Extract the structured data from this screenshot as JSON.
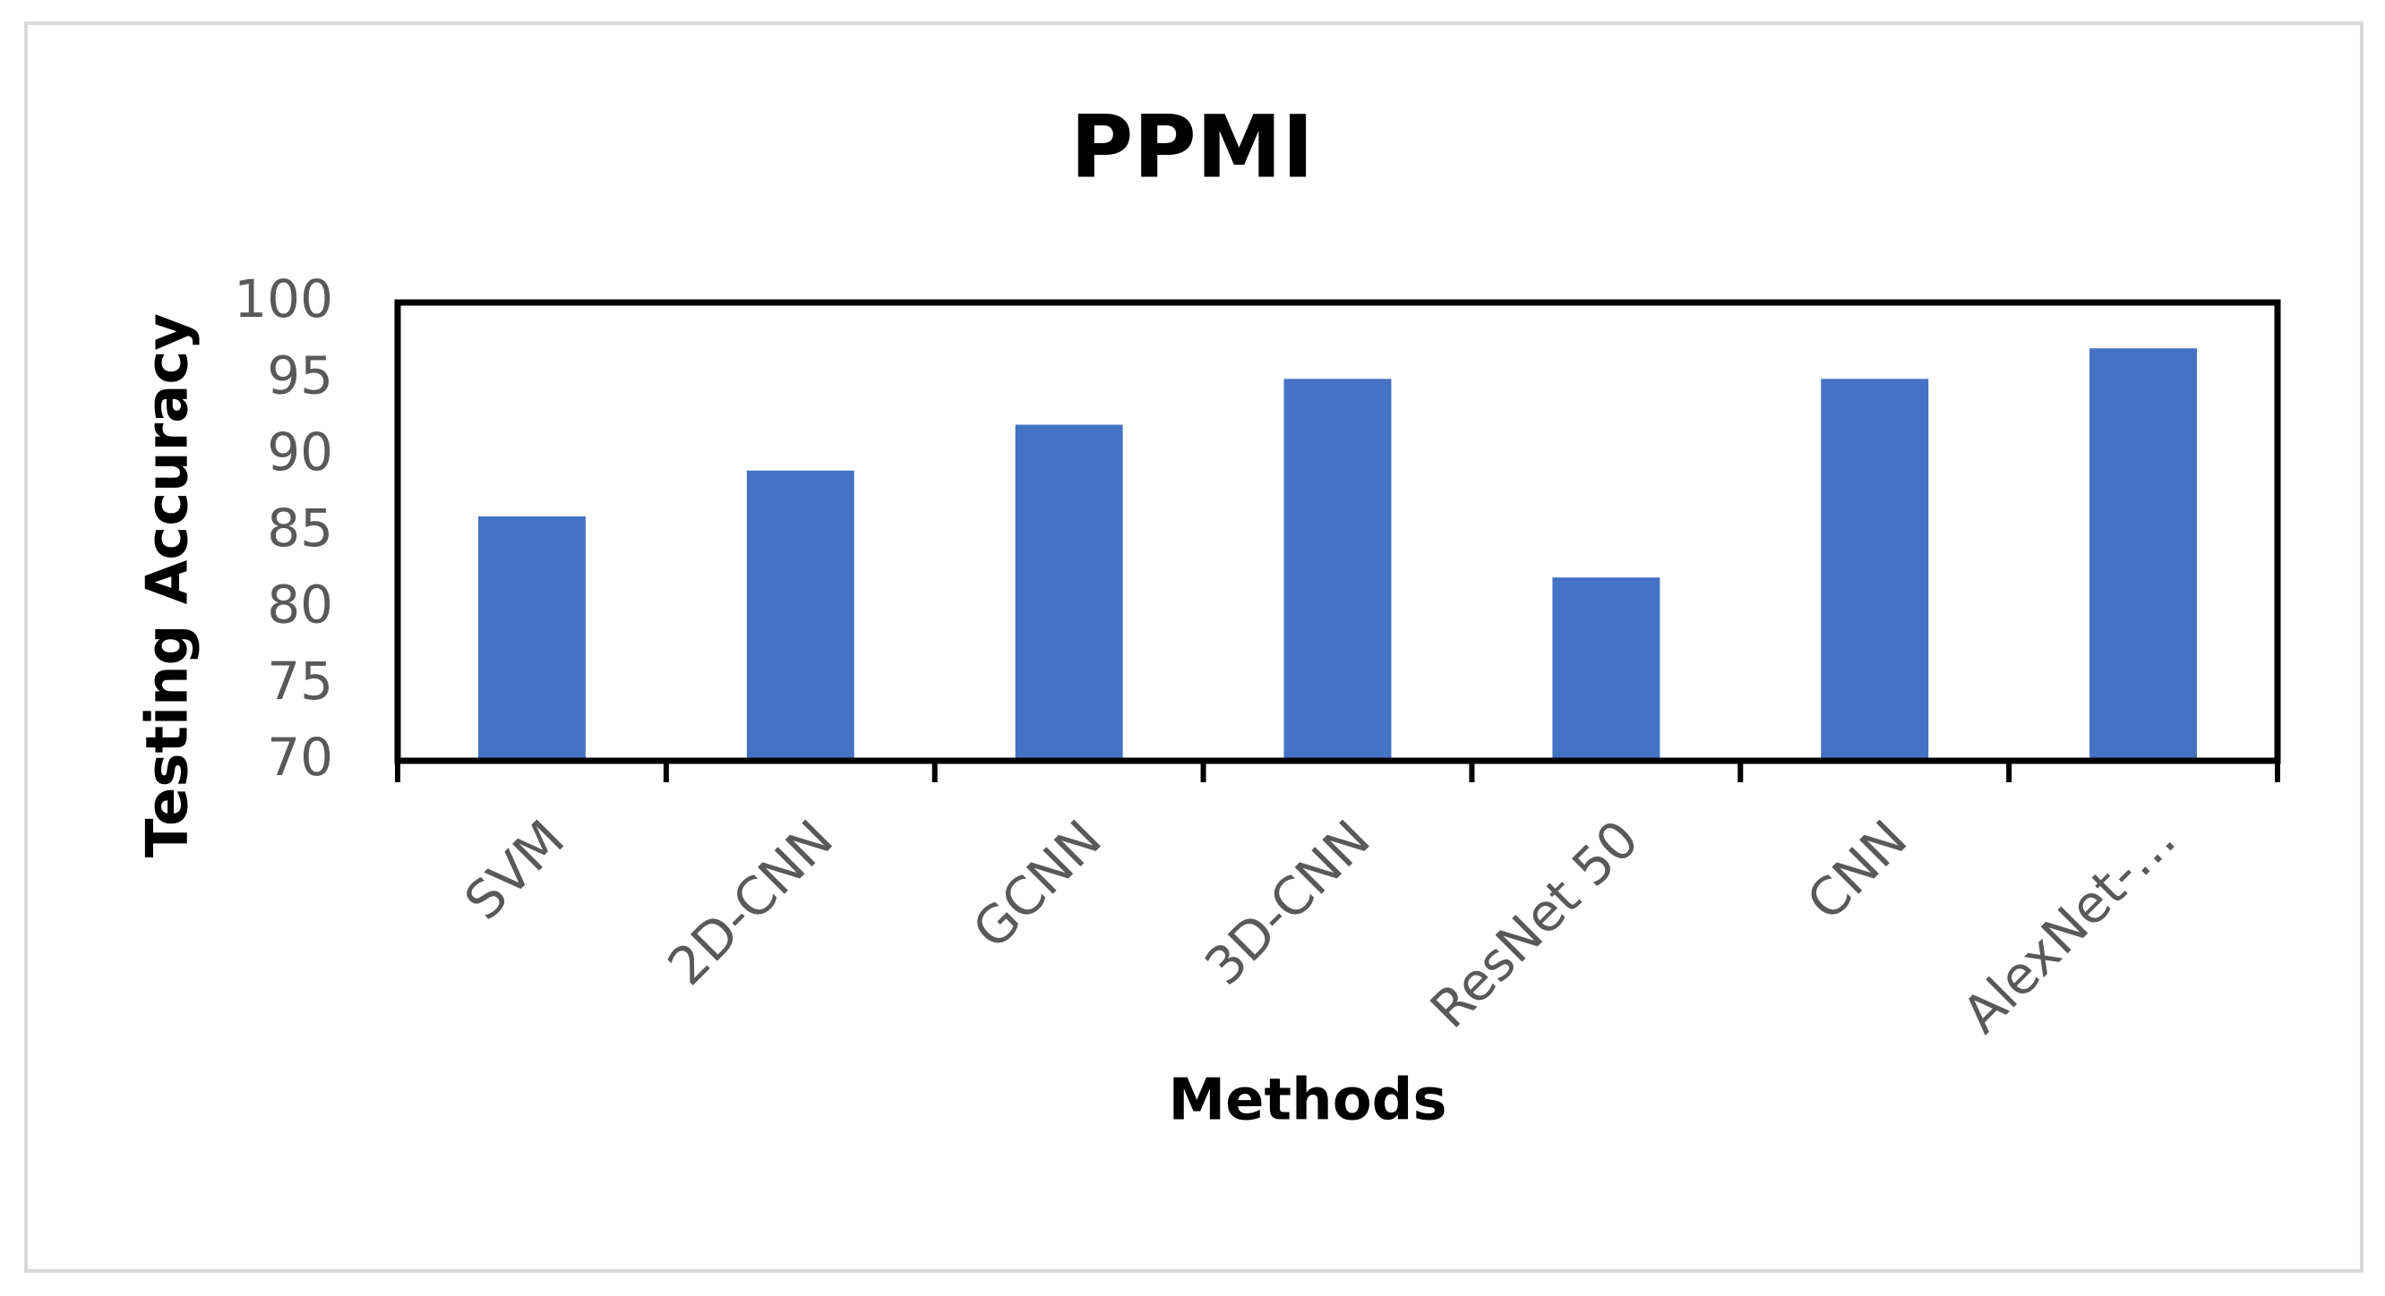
{
  "chart_data": {
    "type": "bar",
    "title": "PPMI",
    "x_label": "Methods",
    "y_label": "Testing Accuracy",
    "categories": [
      "SVM",
      "2D-CNN",
      "GCNN",
      "3D-CNN",
      "ResNet 50",
      "CNN",
      "AlexNet-…"
    ],
    "values": [
      86,
      89,
      92,
      95,
      82,
      95,
      97
    ],
    "color": "#4472c4",
    "ylim": [
      70,
      100
    ],
    "yticks": [
      70,
      75,
      80,
      85,
      90,
      95,
      100
    ]
  }
}
